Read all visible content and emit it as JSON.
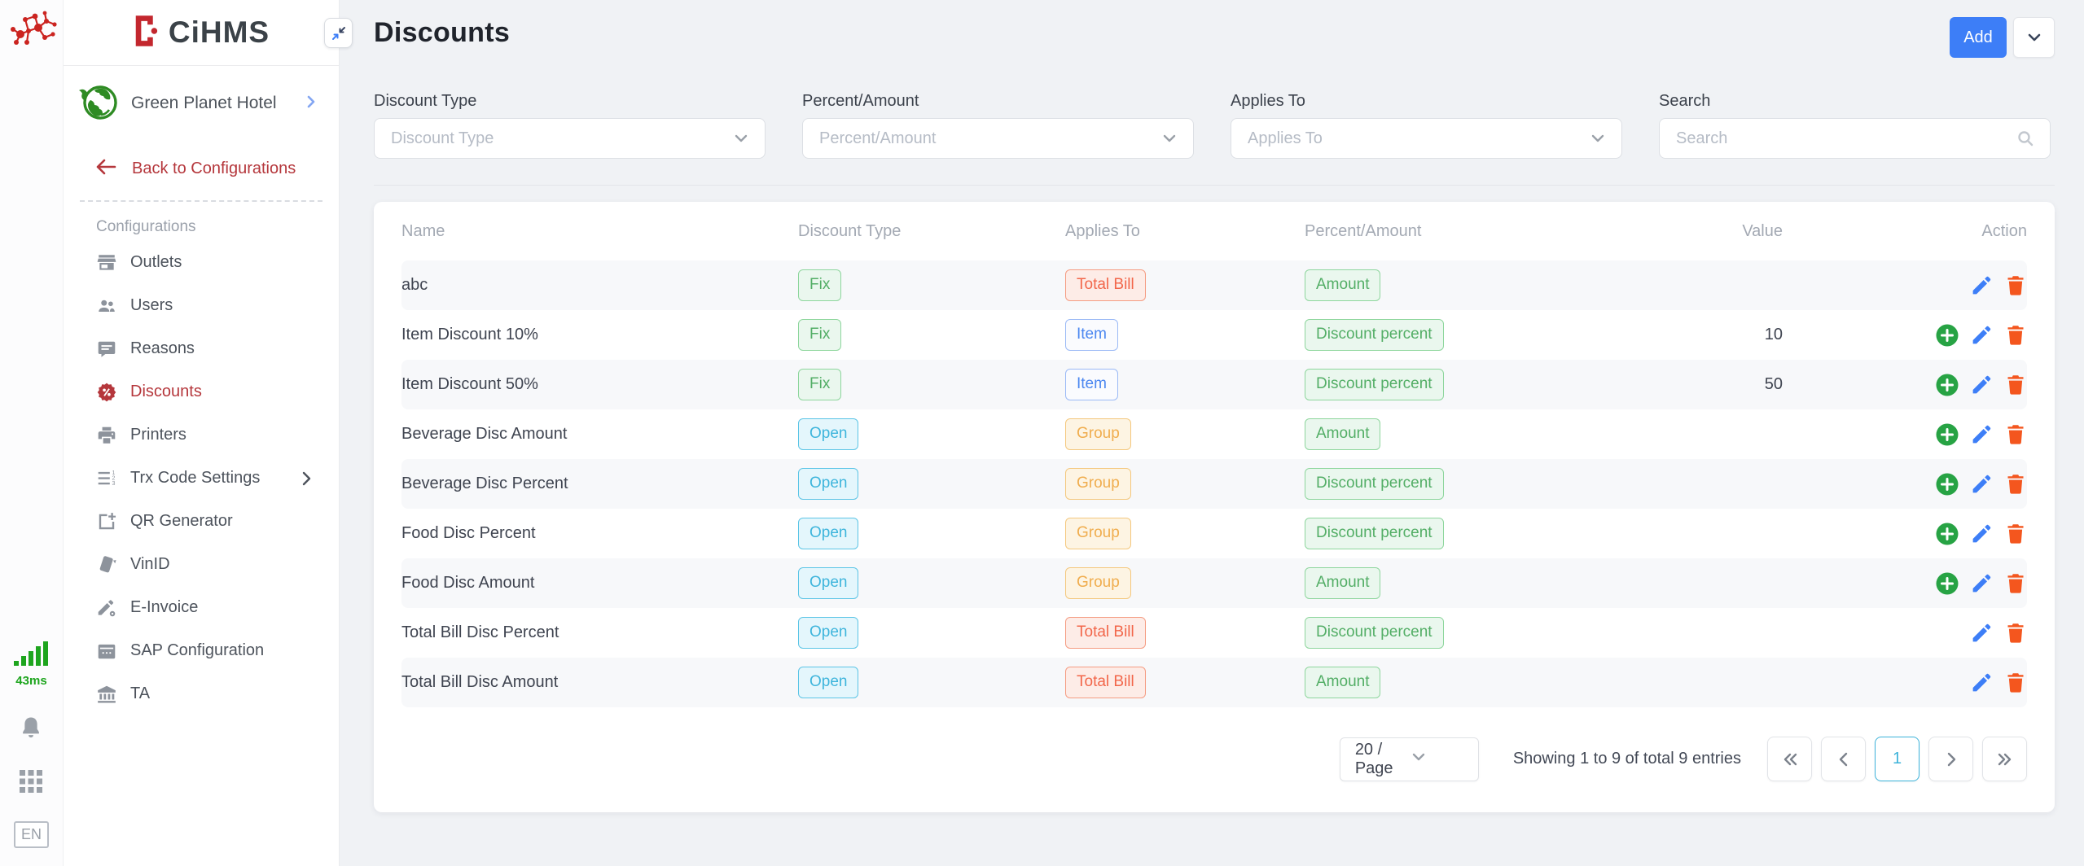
{
  "rail": {
    "latency": "43ms",
    "lang": "EN"
  },
  "brand": {
    "name": "CiHMS",
    "hotel": "Green Planet Hotel"
  },
  "sidebar": {
    "back_label": "Back to Configurations",
    "section_label": "Configurations",
    "items": [
      {
        "label": "Outlets",
        "icon": "store-icon"
      },
      {
        "label": "Users",
        "icon": "users-icon"
      },
      {
        "label": "Reasons",
        "icon": "chat-icon"
      },
      {
        "label": "Discounts",
        "icon": "discount-badge-icon",
        "active": true
      },
      {
        "label": "Printers",
        "icon": "printer-icon"
      },
      {
        "label": "Trx Code Settings",
        "icon": "trx-list-icon",
        "has_submenu": true
      },
      {
        "label": "QR Generator",
        "icon": "qr-icon"
      },
      {
        "label": "VinID",
        "icon": "card-icon"
      },
      {
        "label": "E-Invoice",
        "icon": "invoice-pen-icon"
      },
      {
        "label": "SAP Configuration",
        "icon": "calendar-icon"
      },
      {
        "label": "TA",
        "icon": "bank-icon"
      }
    ]
  },
  "header": {
    "title": "Discounts",
    "add_label": "Add"
  },
  "filters": [
    {
      "label": "Discount Type",
      "placeholder": "Discount Type",
      "type": "select"
    },
    {
      "label": "Percent/Amount",
      "placeholder": "Percent/Amount",
      "type": "select"
    },
    {
      "label": "Applies To",
      "placeholder": "Applies To",
      "type": "select"
    },
    {
      "label": "Search",
      "placeholder": "Search",
      "type": "search"
    }
  ],
  "table": {
    "headers": [
      "Name",
      "Discount Type",
      "Applies To",
      "Percent/Amount",
      "Value",
      "Action"
    ],
    "rows": [
      {
        "name": "abc",
        "discount_type": {
          "label": "Fix",
          "style": "green"
        },
        "applies_to": {
          "label": "Total Bill",
          "style": "red"
        },
        "percent_amount": {
          "label": "Amount",
          "style": "green"
        },
        "value": "",
        "actions": [
          "edit",
          "delete"
        ]
      },
      {
        "name": "Item Discount 10%",
        "discount_type": {
          "label": "Fix",
          "style": "green"
        },
        "applies_to": {
          "label": "Item",
          "style": "blue"
        },
        "percent_amount": {
          "label": "Discount percent",
          "style": "green"
        },
        "value": "10",
        "actions": [
          "add",
          "edit",
          "delete"
        ]
      },
      {
        "name": "Item Discount 50%",
        "discount_type": {
          "label": "Fix",
          "style": "green"
        },
        "applies_to": {
          "label": "Item",
          "style": "blue"
        },
        "percent_amount": {
          "label": "Discount percent",
          "style": "green"
        },
        "value": "50",
        "actions": [
          "add",
          "edit",
          "delete"
        ]
      },
      {
        "name": "Beverage Disc Amount",
        "discount_type": {
          "label": "Open",
          "style": "cyan"
        },
        "applies_to": {
          "label": "Group",
          "style": "yellow"
        },
        "percent_amount": {
          "label": "Amount",
          "style": "green"
        },
        "value": "",
        "actions": [
          "add",
          "edit",
          "delete"
        ]
      },
      {
        "name": "Beverage Disc Percent",
        "discount_type": {
          "label": "Open",
          "style": "cyan"
        },
        "applies_to": {
          "label": "Group",
          "style": "yellow"
        },
        "percent_amount": {
          "label": "Discount percent",
          "style": "green"
        },
        "value": "",
        "actions": [
          "add",
          "edit",
          "delete"
        ]
      },
      {
        "name": "Food Disc Percent",
        "discount_type": {
          "label": "Open",
          "style": "cyan"
        },
        "applies_to": {
          "label": "Group",
          "style": "yellow"
        },
        "percent_amount": {
          "label": "Discount percent",
          "style": "green"
        },
        "value": "",
        "actions": [
          "add",
          "edit",
          "delete"
        ]
      },
      {
        "name": "Food Disc Amount",
        "discount_type": {
          "label": "Open",
          "style": "cyan"
        },
        "applies_to": {
          "label": "Group",
          "style": "yellow"
        },
        "percent_amount": {
          "label": "Amount",
          "style": "green"
        },
        "value": "",
        "actions": [
          "add",
          "edit",
          "delete"
        ]
      },
      {
        "name": "Total Bill Disc Percent",
        "discount_type": {
          "label": "Open",
          "style": "cyan"
        },
        "applies_to": {
          "label": "Total Bill",
          "style": "red"
        },
        "percent_amount": {
          "label": "Discount percent",
          "style": "green"
        },
        "value": "",
        "actions": [
          "edit",
          "delete"
        ]
      },
      {
        "name": "Total Bill Disc Amount",
        "discount_type": {
          "label": "Open",
          "style": "cyan"
        },
        "applies_to": {
          "label": "Total Bill",
          "style": "red"
        },
        "percent_amount": {
          "label": "Amount",
          "style": "green"
        },
        "value": "",
        "actions": [
          "edit",
          "delete"
        ]
      }
    ]
  },
  "badge_styles": {
    "green": {
      "text": "#53ae66",
      "border": "#8ed69d",
      "bg": "#eaf7ee"
    },
    "cyan": {
      "text": "#3eb5dc",
      "border": "#5cc5e6",
      "bg": "#e4f6fc"
    },
    "yellow": {
      "text": "#f0ad4e",
      "border": "#f4c87e",
      "bg": "#fdf4e3"
    },
    "red": {
      "text": "#f2664a",
      "border": "#f59c82",
      "bg": "#fdece7"
    },
    "blue": {
      "text": "#4a86f0",
      "border": "#9bbaf6",
      "bg": "#fafbfe"
    }
  },
  "action_colors": {
    "add": "#27a344",
    "edit": "#3d7ef7",
    "delete": "#f4561e"
  },
  "pagination": {
    "page_size": "20 / Page",
    "summary": "Showing 1 to 9 of total 9 entries",
    "pages": [
      "1"
    ],
    "current": "1"
  },
  "accent": {
    "primary": "#3d7ef7",
    "sidebar_active": "#b5373c",
    "logo_red": "#c3272e",
    "latency_green": "#1ea51e",
    "pager_active": "#3db3da"
  }
}
